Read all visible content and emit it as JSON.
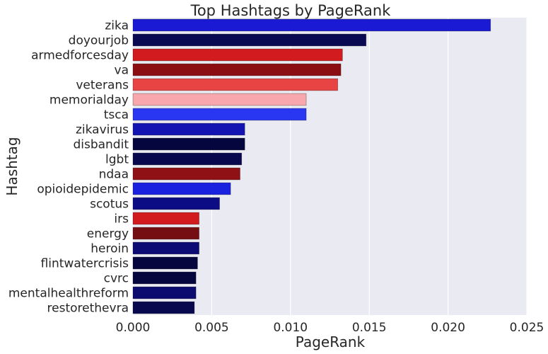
{
  "chart_data": {
    "type": "bar",
    "orientation": "horizontal",
    "title": "Top Hashtags by PageRank",
    "xlabel": "PageRank",
    "ylabel": "Hashtag",
    "xlim": [
      0,
      0.025
    ],
    "xticks": [
      "0.000",
      "0.005",
      "0.010",
      "0.015",
      "0.020",
      "0.025"
    ],
    "grid": true,
    "categories": [
      "zika",
      "doyourjob",
      "armedforcesday",
      "va",
      "veterans",
      "memorialday",
      "tsca",
      "zikavirus",
      "disbandit",
      "lgbt",
      "ndaa",
      "opioidepidemic",
      "scotus",
      "irs",
      "energy",
      "heroin",
      "flintwatercrisis",
      "cvrc",
      "mentalhealthreform",
      "restorethevra"
    ],
    "values": [
      0.0227,
      0.0148,
      0.0133,
      0.0132,
      0.013,
      0.011,
      0.011,
      0.0071,
      0.0071,
      0.0069,
      0.0068,
      0.0062,
      0.0055,
      0.0042,
      0.0042,
      0.0042,
      0.0041,
      0.004,
      0.004,
      0.0039
    ],
    "colors": [
      "#1a1ad4",
      "#0a0a52",
      "#d11b1f",
      "#8b0f12",
      "#e84444",
      "#f8a8ac",
      "#2a37f2",
      "#1414b2",
      "#06063f",
      "#08084f",
      "#8f1115",
      "#1a22e0",
      "#0c0c84",
      "#d11b1f",
      "#750e12",
      "#0c0c74",
      "#06063f",
      "#06063f",
      "#0c0c70",
      "#08084f"
    ]
  }
}
